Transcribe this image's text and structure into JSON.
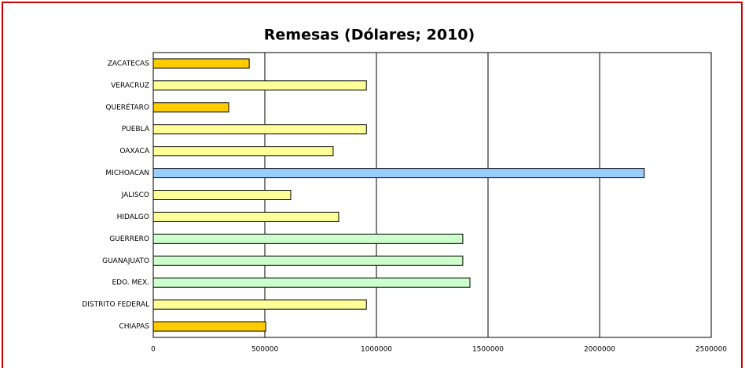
{
  "chart_data": {
    "type": "barh",
    "title": "Remesas (Dólares; 2010)",
    "categories": [
      "ZACATECAS",
      "VERACRUZ",
      "QUERÉTARO",
      "PUEBLA",
      "OAXACA",
      "MICHOACAN",
      "JALISCO",
      "HIDALGO",
      "GUERRERO",
      "GUANAJUATO",
      "EDO. MEX.",
      "DISTRITO FEDERAL",
      "CHIAPAS"
    ],
    "values": [
      430000,
      955000,
      338000,
      955000,
      806000,
      2200000,
      616000,
      831000,
      1387000,
      1387000,
      1419000,
      955000,
      504000
    ],
    "colors": [
      "#ffcc00",
      "#ffff99",
      "#ffcc00",
      "#ffff99",
      "#ffff99",
      "#99ccff",
      "#ffff99",
      "#ffff99",
      "#ccffcc",
      "#ccffcc",
      "#ccffcc",
      "#ffff99",
      "#ffcc00"
    ],
    "xlim": [
      0,
      2500000
    ],
    "xticks": [
      0,
      500000,
      1000000,
      1500000,
      2000000,
      2500000
    ],
    "grid": true
  }
}
